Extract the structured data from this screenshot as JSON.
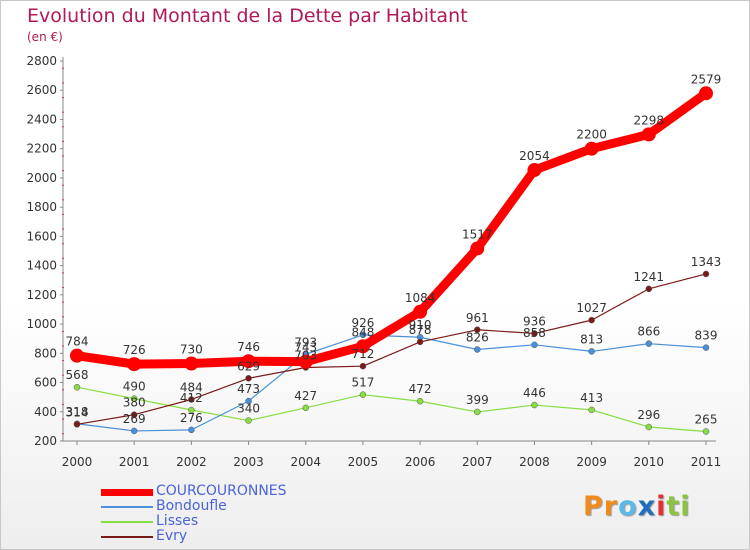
{
  "chart_data": {
    "type": "line",
    "title": "Evolution du Montant de la Dette par Habitant",
    "subtitle": "(en €)",
    "categories": [
      "2000",
      "2001",
      "2002",
      "2003",
      "2004",
      "2005",
      "2006",
      "2007",
      "2008",
      "2009",
      "2010",
      "2011"
    ],
    "ylim": [
      200,
      2800
    ],
    "yticks": [
      200,
      400,
      600,
      800,
      1000,
      1200,
      1400,
      1600,
      1800,
      2000,
      2200,
      2400,
      2600,
      2800
    ],
    "grid": false,
    "legend_position": "bottom-left",
    "series": [
      {
        "name": "COURCOURONNES",
        "color": "#ff0000",
        "values": [
          784,
          726,
          730,
          746,
          743,
          848,
          1084,
          1517,
          2054,
          2200,
          2298,
          2579
        ]
      },
      {
        "name": "Bondoufle",
        "color": "#4a90d9",
        "values": [
          318,
          269,
          276,
          473,
          793,
          926,
          910,
          826,
          858,
          813,
          866,
          839
        ]
      },
      {
        "name": "Lisses",
        "color": "#88dd44",
        "values": [
          568,
          490,
          412,
          340,
          427,
          517,
          472,
          399,
          446,
          413,
          296,
          265
        ]
      },
      {
        "name": "Evry",
        "color": "#7a1a1a",
        "values": [
          314,
          380,
          484,
          629,
          703,
          712,
          878,
          961,
          936,
          1027,
          1241,
          1343
        ]
      }
    ]
  },
  "legend": {
    "items": [
      {
        "label": "COURCOURONNES"
      },
      {
        "label": "Bondoufle"
      },
      {
        "label": "Lisses"
      },
      {
        "label": "Evry"
      }
    ]
  },
  "logo": {
    "letters": [
      "P",
      "r",
      "o",
      "x",
      "i",
      "t",
      "i"
    ],
    "colors": [
      "#f08a1c",
      "#f08a1c",
      "#5ab9e8",
      "#1f6fc0",
      "#e53030",
      "#8ac440",
      "#8ac440"
    ]
  }
}
